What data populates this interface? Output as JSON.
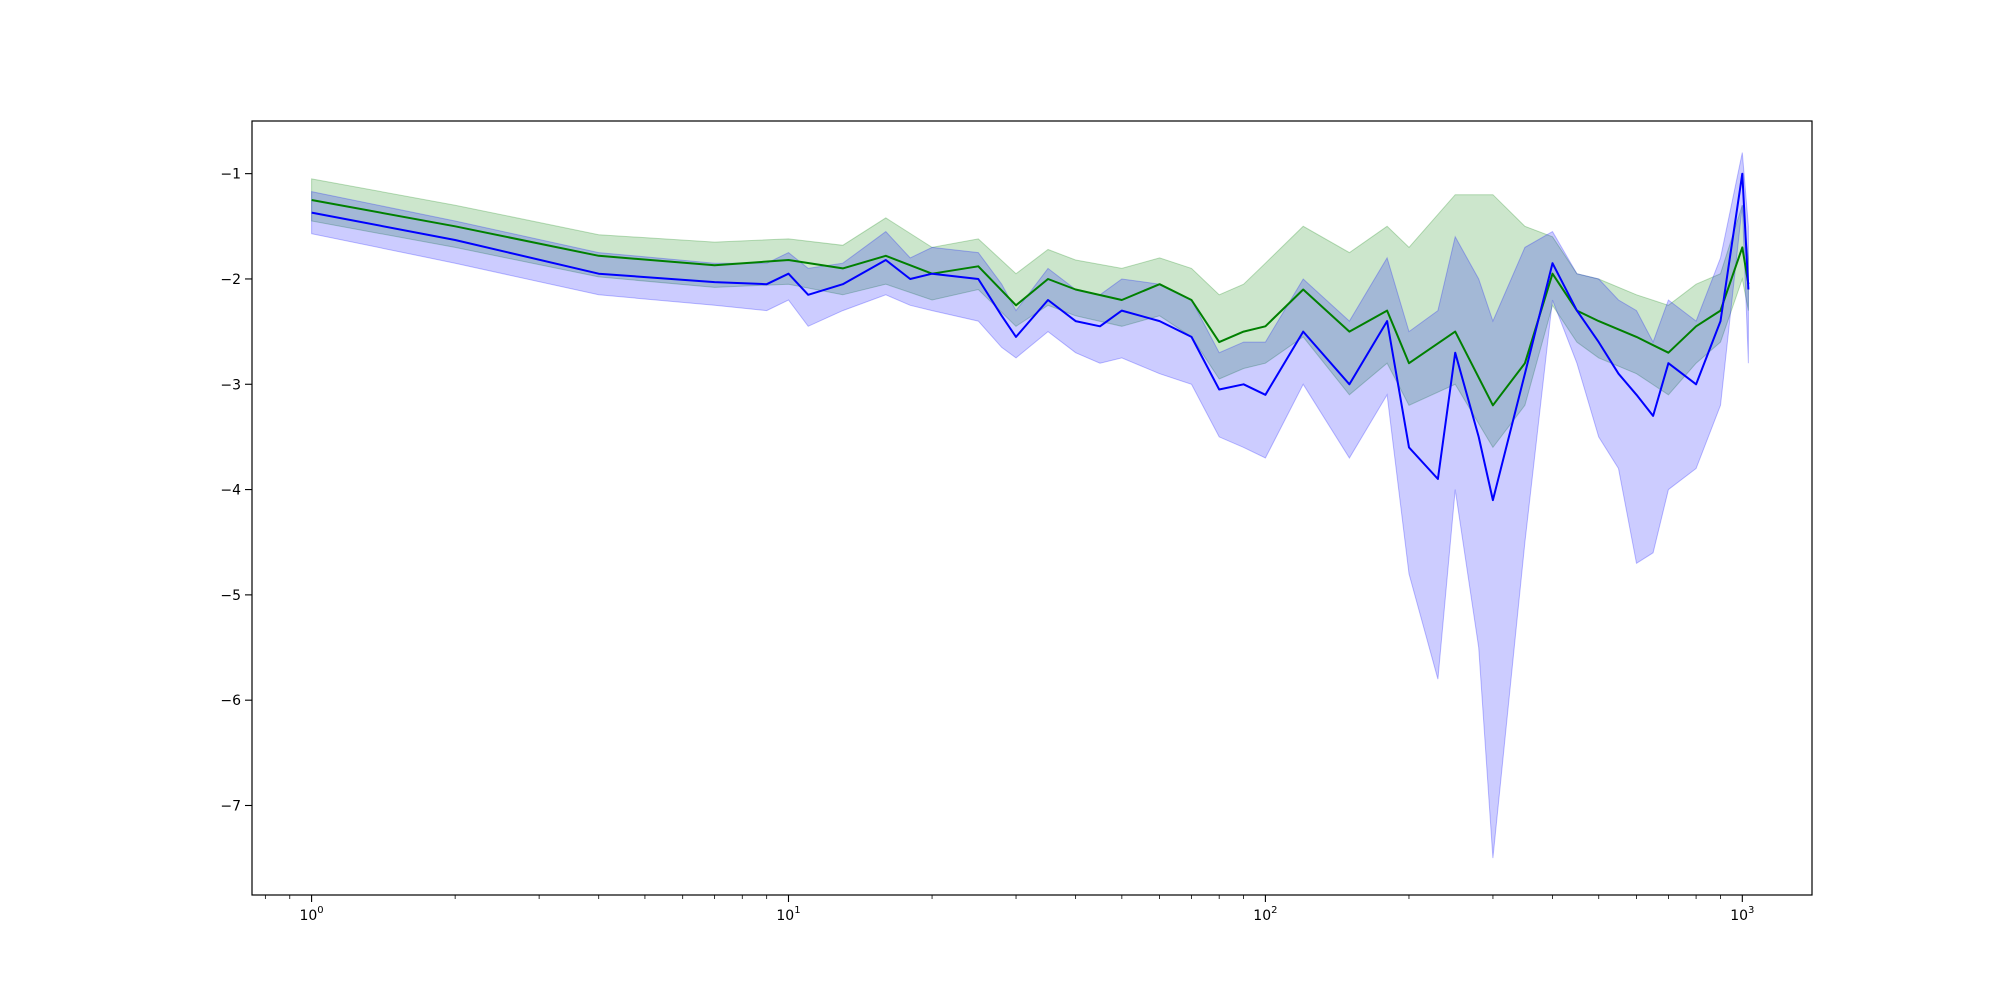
{
  "chart_data": {
    "type": "line",
    "title": "",
    "xlabel": "",
    "ylabel": "",
    "x_scale": "log",
    "x_range": [
      0.75,
      1400
    ],
    "y_range": [
      -7.85,
      -0.5
    ],
    "grid": false,
    "legend": "none",
    "x_ticks": [
      {
        "base": "10",
        "exp": "0",
        "value": 1
      },
      {
        "base": "10",
        "exp": "1",
        "value": 10
      },
      {
        "base": "10",
        "exp": "2",
        "value": 100
      },
      {
        "base": "10",
        "exp": "3",
        "value": 1000
      }
    ],
    "y_ticks": [
      {
        "label": "−1",
        "value": -1
      },
      {
        "label": "−2",
        "value": -2
      },
      {
        "label": "−3",
        "value": -3
      },
      {
        "label": "−4",
        "value": -4
      },
      {
        "label": "−5",
        "value": -5
      },
      {
        "label": "−6",
        "value": -6
      },
      {
        "label": "−7",
        "value": -7
      }
    ],
    "series": [
      {
        "color": "#008000",
        "band_color": "#008000",
        "band_opacity": 0.2,
        "x": [
          1,
          2,
          4,
          7,
          10,
          13,
          16,
          20,
          25,
          30,
          35,
          40,
          50,
          60,
          70,
          80,
          90,
          100,
          120,
          150,
          180,
          200,
          250,
          300,
          350,
          400,
          450,
          500,
          600,
          700,
          800,
          900,
          1000,
          1030
        ],
        "y": [
          -1.25,
          -1.5,
          -1.78,
          -1.87,
          -1.82,
          -1.9,
          -1.78,
          -1.95,
          -1.88,
          -2.25,
          -2.0,
          -2.1,
          -2.2,
          -2.05,
          -2.2,
          -2.6,
          -2.5,
          -2.45,
          -2.1,
          -2.5,
          -2.3,
          -2.8,
          -2.5,
          -3.2,
          -2.8,
          -1.95,
          -2.3,
          -2.4,
          -2.55,
          -2.7,
          -2.45,
          -2.3,
          -1.7,
          -2.05
        ],
        "y_low": [
          -1.45,
          -1.7,
          -1.98,
          -2.08,
          -2.05,
          -2.15,
          -2.05,
          -2.2,
          -2.1,
          -2.45,
          -2.25,
          -2.35,
          -2.45,
          -2.35,
          -2.55,
          -2.95,
          -2.85,
          -2.8,
          -2.55,
          -3.1,
          -2.8,
          -3.2,
          -3.0,
          -3.6,
          -3.2,
          -2.25,
          -2.6,
          -2.75,
          -2.9,
          -3.1,
          -2.8,
          -2.6,
          -2.0,
          -2.3
        ],
        "y_high": [
          -1.05,
          -1.3,
          -1.58,
          -1.65,
          -1.62,
          -1.68,
          -1.42,
          -1.7,
          -1.62,
          -1.95,
          -1.72,
          -1.82,
          -1.9,
          -1.8,
          -1.9,
          -2.15,
          -2.05,
          -1.85,
          -1.5,
          -1.75,
          -1.5,
          -1.7,
          -1.2,
          -1.2,
          -1.5,
          -1.6,
          -1.95,
          -2.0,
          -2.15,
          -2.25,
          -2.05,
          -1.95,
          -1.3,
          -1.8
        ]
      },
      {
        "color": "#0000ff",
        "band_color": "#0000ff",
        "band_opacity": 0.2,
        "x": [
          1,
          2,
          4,
          7,
          9,
          10,
          11,
          13,
          16,
          18,
          20,
          25,
          28,
          30,
          35,
          40,
          45,
          50,
          60,
          70,
          80,
          90,
          100,
          120,
          150,
          180,
          200,
          230,
          250,
          280,
          300,
          350,
          400,
          450,
          500,
          550,
          600,
          650,
          700,
          800,
          900,
          1000,
          1030
        ],
        "y": [
          -1.37,
          -1.63,
          -1.95,
          -2.03,
          -2.05,
          -1.95,
          -2.15,
          -2.05,
          -1.82,
          -2.0,
          -1.95,
          -2.0,
          -2.35,
          -2.55,
          -2.2,
          -2.4,
          -2.45,
          -2.3,
          -2.4,
          -2.55,
          -3.05,
          -3.0,
          -3.1,
          -2.5,
          -3.0,
          -2.4,
          -3.6,
          -3.9,
          -2.7,
          -3.5,
          -4.1,
          -2.9,
          -1.85,
          -2.3,
          -2.6,
          -2.9,
          -3.1,
          -3.3,
          -2.8,
          -3.0,
          -2.4,
          -1.0,
          -2.1
        ],
        "y_low": [
          -1.57,
          -1.85,
          -2.15,
          -2.25,
          -2.3,
          -2.2,
          -2.45,
          -2.3,
          -2.15,
          -2.25,
          -2.3,
          -2.4,
          -2.65,
          -2.75,
          -2.5,
          -2.7,
          -2.8,
          -2.75,
          -2.9,
          -3.0,
          -3.5,
          -3.6,
          -3.7,
          -3.0,
          -3.7,
          -3.1,
          -4.8,
          -5.8,
          -4.0,
          -5.5,
          -7.5,
          -4.5,
          -2.2,
          -2.8,
          -3.5,
          -3.8,
          -4.7,
          -4.6,
          -4.0,
          -3.8,
          -3.2,
          -1.3,
          -2.8
        ],
        "y_high": [
          -1.17,
          -1.45,
          -1.75,
          -1.85,
          -1.85,
          -1.75,
          -1.9,
          -1.85,
          -1.55,
          -1.8,
          -1.7,
          -1.75,
          -2.05,
          -2.3,
          -1.9,
          -2.1,
          -2.15,
          -2.0,
          -2.05,
          -2.2,
          -2.7,
          -2.6,
          -2.6,
          -2.0,
          -2.4,
          -1.8,
          -2.5,
          -2.3,
          -1.6,
          -2.0,
          -2.4,
          -1.7,
          -1.55,
          -1.95,
          -2.0,
          -2.2,
          -2.3,
          -2.6,
          -2.2,
          -2.4,
          -1.8,
          -0.8,
          -1.5
        ]
      }
    ]
  }
}
